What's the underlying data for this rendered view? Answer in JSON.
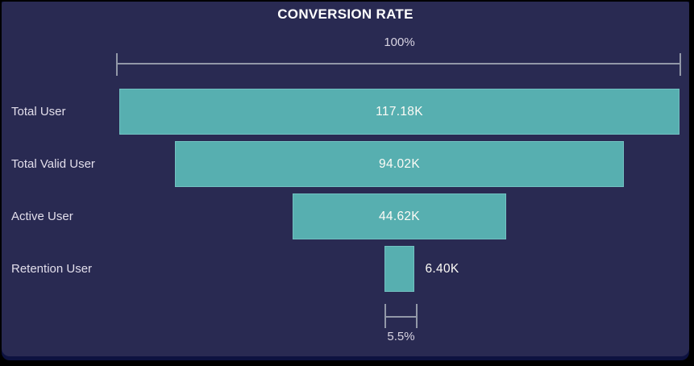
{
  "title": "CONVERSION RATE",
  "chart_data": {
    "type": "bar",
    "variant": "funnel",
    "orientation": "horizontal-centered",
    "title": "CONVERSION RATE",
    "categories": [
      "Total User",
      "Total Valid User",
      "Active User",
      "Retention User"
    ],
    "values": [
      117180,
      94020,
      44620,
      6400
    ],
    "value_labels": [
      "117.18K",
      "94.02K",
      "44.62K",
      "6.40K"
    ],
    "max_percent_label": "100%",
    "min_percent_label": "5.5%",
    "legend": "none",
    "grid": false
  },
  "colors": {
    "bar_fill": "#57afb0",
    "bar_border": "#72c1c1",
    "bracket_line": "#9298a8",
    "title_text": "#ffffff",
    "label_text": "#e2deeb",
    "value_text": "#fdfbf6",
    "percent_text": "#d8d4e2",
    "panel_bg": "#292a52",
    "page_bg": "#0d1240"
  }
}
